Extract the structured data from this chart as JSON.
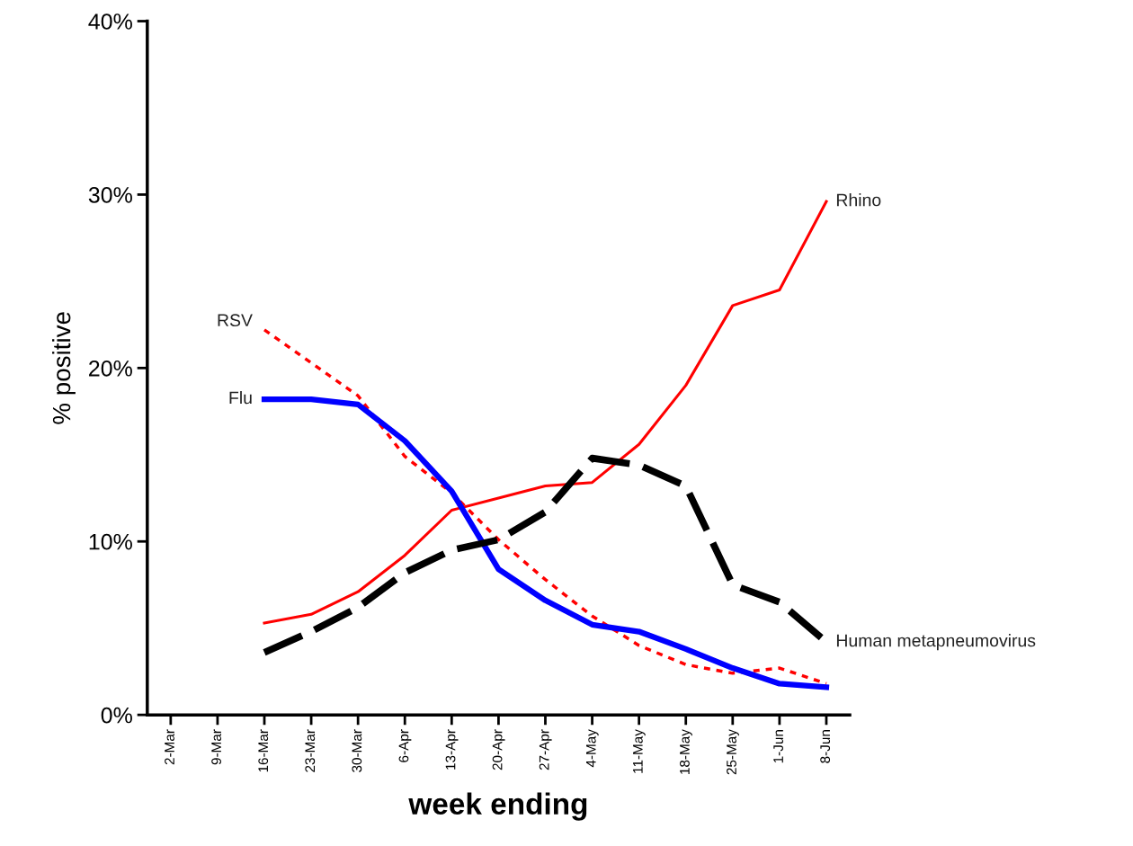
{
  "chart_data": {
    "type": "line",
    "xlabel": "week ending",
    "ylabel": "% positive",
    "categories": [
      "2-Mar",
      "9-Mar",
      "16-Mar",
      "23-Mar",
      "30-Mar",
      "6-Apr",
      "13-Apr",
      "20-Apr",
      "27-Apr",
      "4-May",
      "11-May",
      "18-May",
      "25-May",
      "1-Jun",
      "8-Jun"
    ],
    "series": [
      {
        "name": "Rhino",
        "color": "#ff0000",
        "line_style": "solid",
        "values": [
          null,
          null,
          5.3,
          5.8,
          7.1,
          9.2,
          11.8,
          12.5,
          13.2,
          13.4,
          15.6,
          19.0,
          23.6,
          24.5,
          29.6
        ]
      },
      {
        "name": "RSV",
        "color": "#ff0000",
        "line_style": "dotted",
        "values": [
          null,
          null,
          22.2,
          20.3,
          18.4,
          14.9,
          12.8,
          10.1,
          7.8,
          5.7,
          4.0,
          2.9,
          2.4,
          2.7,
          1.8
        ]
      },
      {
        "name": "Flu",
        "color": "#0000ff",
        "line_style": "solid",
        "values": [
          null,
          null,
          18.2,
          18.2,
          17.9,
          15.8,
          12.9,
          8.4,
          6.6,
          5.2,
          4.8,
          3.8,
          2.7,
          1.8,
          1.6
        ]
      },
      {
        "name": "Human metapneumovirus",
        "color": "#000000",
        "line_style": "dashed",
        "values": [
          null,
          null,
          3.6,
          4.8,
          6.2,
          8.2,
          9.5,
          10.1,
          11.7,
          14.8,
          14.4,
          13.2,
          7.5,
          6.5,
          4.2
        ]
      }
    ],
    "ylim": [
      0,
      40
    ],
    "yticks": [
      {
        "value": 0,
        "label": "0%"
      },
      {
        "value": 10,
        "label": "10%"
      },
      {
        "value": 20,
        "label": "20%"
      },
      {
        "value": 30,
        "label": "30%"
      },
      {
        "value": 40,
        "label": "40%"
      }
    ],
    "grid": false,
    "legend": false,
    "marker": "none"
  }
}
